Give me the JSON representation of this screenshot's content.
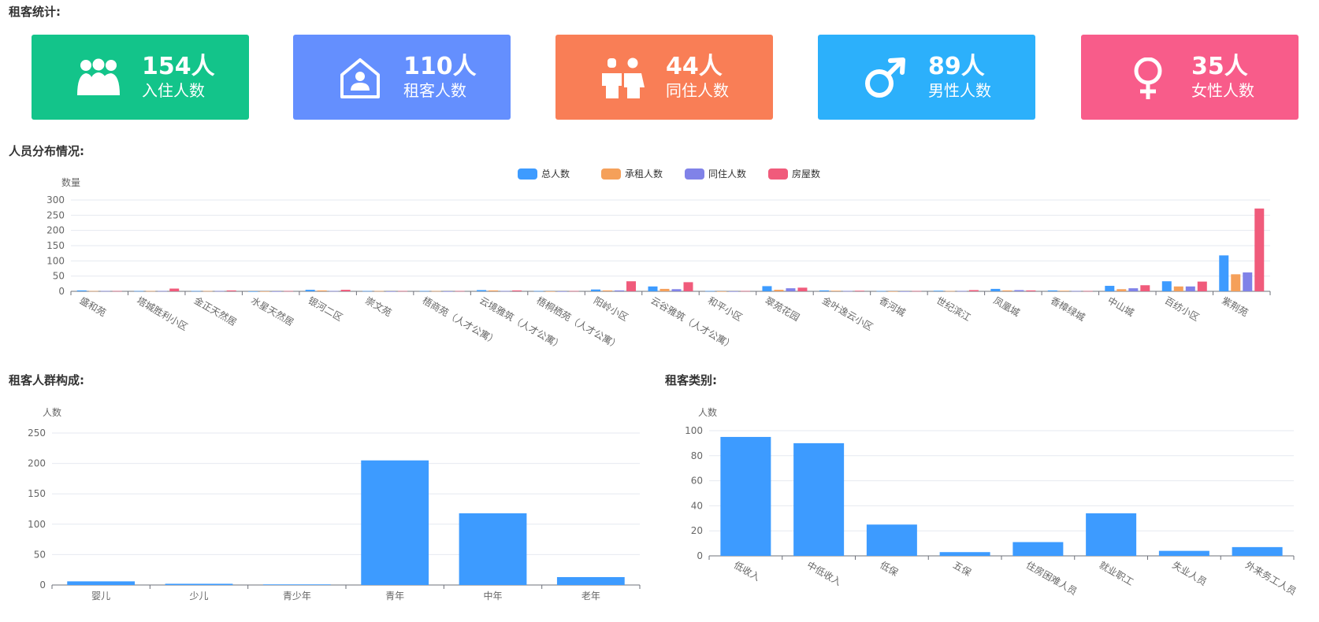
{
  "sections": {
    "stats_title": "租客统计:",
    "distribution_title": "人员分布情况:",
    "composition_title": "租客人群构成:",
    "category_title": "租客类别:"
  },
  "cards": [
    {
      "value": "154人",
      "label": "入住人数",
      "color": "#13c48a",
      "icon": "group-icon"
    },
    {
      "value": "110人",
      "label": "租客人数",
      "color": "#648ffe",
      "icon": "house-person-icon"
    },
    {
      "value": "44人",
      "label": "同住人数",
      "color": "#f97e56",
      "icon": "couple-icon"
    },
    {
      "value": "89人",
      "label": "男性人数",
      "color": "#2cb0fb",
      "icon": "male-icon"
    },
    {
      "value": "35人",
      "label": "女性人数",
      "color": "#f85c8a",
      "icon": "female-icon"
    }
  ],
  "chart_data": [
    {
      "type": "bar",
      "ylabel": "数量",
      "ylim": [
        0,
        300
      ],
      "yticks": [
        0,
        50,
        100,
        150,
        200,
        250,
        300
      ],
      "legend_position": "top-center",
      "categories": [
        "盛和苑",
        "塔城胜利小区",
        "金正天然居",
        "水星天然居",
        "银河二区",
        "崇文苑",
        "梧商苑（人才公寓）",
        "云境雅筑（人才公寓）",
        "梧桐栖苑（人才公寓）",
        "阳岭小区",
        "云谷雅筑（人才公寓）",
        "和平小区",
        "翠苑花园",
        "金叶逸云小区",
        "香河城",
        "世纪滨江",
        "凤凰城",
        "香樟绿城",
        "中山城",
        "百纺小区",
        "紫荆苑"
      ],
      "series": [
        {
          "name": "总人数",
          "color": "#3d9bff",
          "values": [
            3,
            1,
            1,
            0,
            5,
            1,
            1,
            4,
            1,
            6,
            16,
            1,
            17,
            3,
            1,
            2,
            8,
            3,
            18,
            33,
            118
          ]
        },
        {
          "name": "承租人数",
          "color": "#f5a05a",
          "values": [
            1,
            1,
            1,
            0,
            3,
            1,
            1,
            3,
            0,
            3,
            8,
            0,
            5,
            2,
            0,
            1,
            3,
            2,
            7,
            16,
            56
          ]
        },
        {
          "name": "同住人数",
          "color": "#8082e8",
          "values": [
            1,
            1,
            1,
            0,
            1,
            0,
            0,
            1,
            0,
            3,
            7,
            0,
            10,
            1,
            0,
            1,
            4,
            1,
            10,
            16,
            62
          ]
        },
        {
          "name": "房屋数",
          "color": "#f05b7b",
          "values": [
            1,
            9,
            3,
            1,
            5,
            1,
            1,
            3,
            1,
            33,
            30,
            1,
            12,
            2,
            1,
            4,
            3,
            1,
            20,
            32,
            272
          ]
        }
      ]
    },
    {
      "type": "bar",
      "ylabel": "人数",
      "ylim": [
        0,
        250
      ],
      "yticks": [
        0,
        50,
        100,
        150,
        200,
        250
      ],
      "categories": [
        "婴儿",
        "少儿",
        "青少年",
        "青年",
        "中年",
        "老年"
      ],
      "values": [
        6,
        2,
        1,
        205,
        118,
        13
      ],
      "color": "#3d9bff"
    },
    {
      "type": "bar",
      "ylabel": "人数",
      "ylim": [
        0,
        100
      ],
      "yticks": [
        0,
        20,
        40,
        60,
        80,
        100
      ],
      "categories": [
        "低收入",
        "中低收入",
        "低保",
        "五保",
        "住房困难人员",
        "就业职工",
        "失业人员",
        "外来务工人员"
      ],
      "values": [
        95,
        90,
        25,
        3,
        11,
        34,
        4,
        7
      ],
      "color": "#3d9bff"
    }
  ]
}
